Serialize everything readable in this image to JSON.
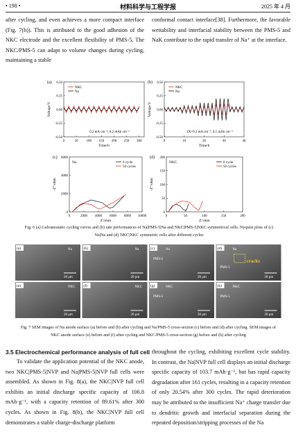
{
  "header": {
    "page": "• 198 •",
    "journal": "材料科学与工程学报",
    "date": "2025 年 4 月"
  },
  "top": {
    "left": "after cycling, and even achieves a more compact interface (Fig. 7(h)). This is attributed to the good adhesion of the NKC electrode and the excellent flexibility of PMS-5. The NKC/PMS-5 can adapt to volume changes during cycling, maintaining a stable",
    "right": "conformal contact interface[38]. Furthermore, the favorable wettability and interfacial stability between the PMS-5 and NaK contribute to the rapid transfer of Na⁺ at the interface."
  },
  "figure6": {
    "panels": [
      {
        "label": "(a)",
        "xlabel": "Time/h",
        "ylabel": "Voltage/V",
        "annotation": "0.2 mA cm⁻², 0.2 mAh cm⁻²",
        "xlim": [
          0,
          320
        ],
        "ylim": [
          -0.5,
          0.5
        ],
        "xticks": [
          0,
          50,
          100,
          150,
          200,
          250,
          300
        ],
        "yticks": [
          {
            "value": -0.5,
            "label": "-0.50"
          },
          {
            "value": -0.25,
            "label": "-0.25"
          },
          {
            "value": 0,
            "label": "0.00"
          },
          {
            "value": 0.25,
            "label": "0.25"
          },
          {
            "value": 0.5,
            "label": "0.50"
          }
        ],
        "series": [
          {
            "name": "NKC",
            "color": "#e8271f",
            "x": [
              0,
              10,
              20,
              30,
              40,
              50,
              60,
              70,
              80,
              90,
              100,
              110,
              120,
              130,
              140,
              150,
              160,
              170,
              180,
              190,
              200,
              210,
              220,
              230,
              240,
              250,
              260,
              270,
              280,
              290,
              300
            ],
            "values": [
              0.06,
              -0.06,
              0.06,
              -0.06,
              0.06,
              -0.06,
              0.06,
              -0.06,
              0.06,
              -0.06,
              0.06,
              -0.06,
              0.06,
              -0.06,
              0.06,
              -0.06,
              0.06,
              -0.06,
              0.06,
              -0.06,
              0.06,
              -0.06,
              0.06,
              -0.06,
              0.06,
              -0.06,
              0.06,
              -0.06,
              0.06,
              -0.06,
              0.06
            ]
          },
          {
            "name": "Na",
            "color": "#111111",
            "x": [
              0,
              10,
              20,
              30,
              40,
              50,
              60,
              70,
              80,
              90,
              100,
              110,
              120,
              130,
              140,
              150,
              160,
              170,
              180,
              190,
              200,
              210,
              220,
              230,
              240,
              250,
              260,
              270,
              280,
              290,
              300
            ],
            "values": [
              0.03,
              -0.03,
              0.03,
              -0.03,
              0.03,
              -0.03,
              0.03,
              -0.03,
              0.03,
              -0.03,
              0.03,
              -0.03,
              0.03,
              -0.03,
              0.03,
              -0.03,
              0.03,
              -0.03,
              0.03,
              -0.03,
              0.03,
              -0.03,
              0.03,
              -0.03,
              0.03,
              -0.03,
              0.03,
              -0.03,
              0.03,
              -0.03,
              0.03
            ]
          }
        ]
      },
      {
        "label": "(b)",
        "xlabel": "Time/h",
        "ylabel": "Voltage/V",
        "annotation": "1X=0.1 mA cm⁻², 0.1 mAh cm⁻²",
        "xlim": [
          0,
          40
        ],
        "ylim": [
          -0.5,
          0.5
        ],
        "xticks": [
          0,
          10,
          20,
          30,
          40
        ],
        "yticks": [
          {
            "value": -0.5,
            "label": "-0.50"
          },
          {
            "value": -0.25,
            "label": "-0.25"
          },
          {
            "value": 0,
            "label": "0.00"
          },
          {
            "value": 0.25,
            "label": "0.25"
          },
          {
            "value": 0.5,
            "label": "0.50"
          }
        ],
        "series": [
          {
            "name": "NKC",
            "color": "#e8271f",
            "x": [
              0,
              1,
              2,
              3,
              4,
              5,
              6,
              7,
              8,
              9,
              10,
              11,
              12,
              13,
              14,
              15,
              16,
              17,
              18,
              19,
              20,
              21,
              22,
              23,
              24,
              25,
              26,
              27,
              28,
              29,
              30,
              31,
              32,
              33,
              34,
              35,
              36,
              37,
              38,
              39,
              40
            ],
            "values": [
              0.02,
              -0.02,
              0.02,
              -0.02,
              0.02,
              -0.02,
              0.02,
              -0.02,
              0.02,
              -0.035,
              0.035,
              -0.035,
              0.035,
              -0.035,
              0.035,
              -0.035,
              0.035,
              -0.06,
              0.06,
              -0.06,
              0.06,
              -0.06,
              0.06,
              -0.06,
              0.06,
              -0.1,
              0.1,
              -0.1,
              0.1,
              -0.1,
              0.1,
              -0.1,
              0.1,
              -0.025,
              0.025,
              -0.025,
              0.025,
              -0.025,
              0.025,
              -0.025,
              0.025
            ]
          },
          {
            "name": "Na",
            "color": "#111111",
            "x": [
              0,
              1,
              2,
              3,
              4,
              5,
              6,
              7,
              8,
              9,
              10,
              11,
              12,
              13,
              14,
              15,
              16,
              17,
              18,
              19,
              20,
              21,
              22,
              23,
              24,
              25,
              26,
              27,
              28,
              29,
              30,
              31,
              32,
              33,
              34,
              35,
              36,
              37,
              38,
              39,
              40
            ],
            "values": [
              0.04,
              -0.04,
              0.04,
              -0.04,
              0.04,
              -0.04,
              0.04,
              -0.04,
              0.04,
              -0.07,
              0.07,
              -0.07,
              0.07,
              -0.07,
              0.07,
              -0.07,
              0.07,
              -0.12,
              0.12,
              -0.12,
              0.12,
              -0.12,
              0.12,
              -0.12,
              0.12,
              -0.2,
              0.2,
              -0.2,
              0.2,
              -0.2,
              0.2,
              -0.2,
              0.2,
              -0.05,
              0.05,
              -0.05,
              0.05,
              -0.05,
              0.05,
              -0.05,
              0.05
            ]
          }
        ]
      },
      {
        "label": "(c)",
        "tag": "Na",
        "xlabel": "Z'/ohm",
        "ylabel": "-Z''/ohm",
        "xlim": [
          0,
          10000
        ],
        "ylim": [
          0,
          6000
        ],
        "xticks": [
          0,
          2000,
          4000,
          6000,
          8000,
          10000
        ],
        "yticks": [
          0,
          2000,
          4000,
          6000
        ],
        "series": [
          {
            "name": "0 cycle",
            "color": "#111111",
            "x": [
              400,
              1500,
              3000,
              4500,
              5500,
              6000,
              6500,
              7000,
              7500
            ],
            "values": [
              0,
              800,
              1300,
              1000,
              400,
              500,
              900,
              1300,
              1700
            ]
          },
          {
            "name": "50 cycles",
            "color": "#e8271f",
            "x": [
              400,
              1000,
              2000,
              3000,
              3800,
              4200,
              5000,
              6000,
              7000,
              7800
            ],
            "values": [
              0,
              500,
              900,
              800,
              400,
              300,
              600,
              1000,
              1500,
              1900
            ]
          }
        ]
      },
      {
        "label": "(d)",
        "tag": "NKC",
        "xlabel": "Z'/ohm",
        "ylabel": "-Z''/ohm",
        "xlim": [
          0,
          200
        ],
        "ylim": [
          0,
          200
        ],
        "xticks": [
          0,
          50,
          100,
          150,
          200
        ],
        "yticks": [
          0,
          50,
          100,
          150,
          200
        ],
        "series": [
          {
            "name": "0 cycle",
            "color": "#111111",
            "x": [
              5,
              15,
              25,
              35,
              45,
              52,
              55,
              58
            ],
            "values": [
              0,
              20,
              28,
              22,
              8,
              5,
              15,
              30
            ]
          },
          {
            "name": "50 cycles",
            "color": "#e8271f",
            "x": [
              5,
              20,
              40,
              60,
              75,
              85,
              90,
              95
            ],
            "values": [
              0,
              25,
              40,
              35,
              15,
              5,
              20,
              40
            ]
          }
        ]
      }
    ],
    "caption": "Fig. 6  (a) Galvanostatic cycling curves and (b) rate performances of Na|PMS-5|Na and NKC|PMS-5|NKC symmetrical cells. Nyquist plots of (c) Na|Na and (d) NKC|NKC symmetric cells after different cycles"
  },
  "figure7": {
    "panels": [
      {
        "label": "(a)",
        "texts": [
          "Na",
          "20 μm"
        ]
      },
      {
        "label": "(b)",
        "texts": [
          "Na",
          "20 μm"
        ]
      },
      {
        "label": "(c)",
        "texts": [
          "Na",
          "PMS-5",
          "20 μm"
        ]
      },
      {
        "label": "(d)",
        "texts": [
          "Na",
          "cracks",
          "PMS-5",
          "20 μm"
        ]
      },
      {
        "label": "(e)",
        "texts": [
          "NKC",
          "20 μm"
        ]
      },
      {
        "label": "(f)",
        "texts": [
          "NKC",
          "20 μm"
        ]
      },
      {
        "label": "(g)",
        "texts": [
          "NKC",
          "PMS-5",
          "20 μm"
        ]
      },
      {
        "label": "(h)",
        "texts": [
          "NKC",
          "PMS-5",
          "20 μm"
        ]
      }
    ],
    "caption": "Fig. 7  SEM images of Na anode surface (a) before and (b) after cycling and Na/PMS-5 cross-section (c) before and (d) after cycling. SEM images of NKC anode surface (e) before and (f) after cycling and NKC/PMS-5 cross-section (g) before and (h) after cycling"
  },
  "section": {
    "heading": "3.5  Electrochemical performance analysis of full cell",
    "left": "To validate the application potential of the NKC anode, two NKC|PMS-5|NVP and Na|PMS-5|NVP full cells were assembled. As shown in Fig. 8(a), the NKC|NVP full cell exhibits an initial discharge specific capacity of 106.8 mAh·g⁻¹, with a capacity retention of 89.61% after 300 cycles. As shown in Fig. 8(b), the NKC|NVP full cell demonstrates a stable charge-discharge platform",
    "right": "throughout the cycling, exhibiting excellent cycle stability. In contrast, the Na|NVP full cell displays an initial discharge specific capacity of 103.7 mAh·g⁻¹, but has rapid capacity degradation after 161 cycles, resulting in a capacity retention of only 20.54% after 300 cycles. The rapid deterioration may be attributed to the insufficient Na⁺ charge transfer due to dendritic growth and interfacial separation during the repeated deposition/stripping processes of the Na"
  }
}
